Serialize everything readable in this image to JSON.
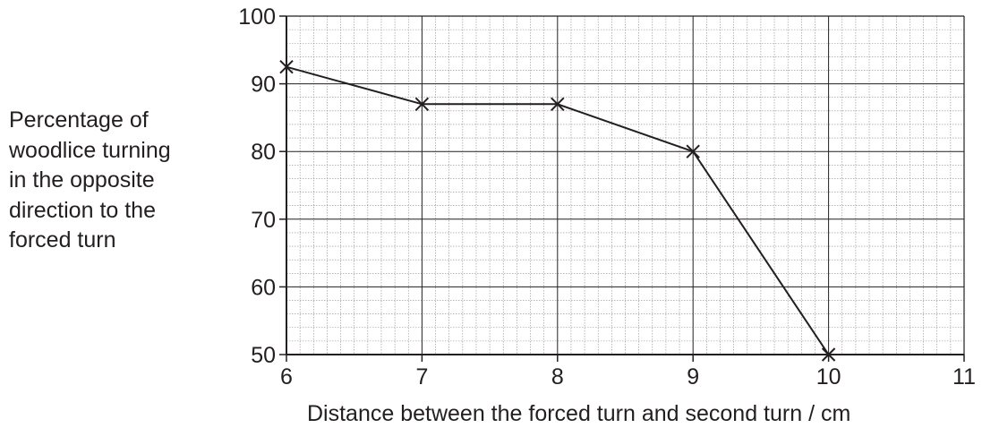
{
  "chart_data": {
    "type": "line",
    "title": "",
    "xlabel": "Distance between the forced turn and second turn / cm",
    "ylabel_lines": [
      "Percentage of",
      "woodlice turning",
      "in the opposite",
      "direction to the",
      "forced turn"
    ],
    "xlim": [
      6,
      11
    ],
    "ylim": [
      50,
      100
    ],
    "x_ticks": [
      "6",
      "7",
      "8",
      "9",
      "10",
      "11"
    ],
    "y_ticks": [
      "50",
      "60",
      "70",
      "80",
      "90",
      "100"
    ],
    "grid": true,
    "marker": "x",
    "series": [
      {
        "x": [
          6,
          7,
          8,
          9,
          10
        ],
        "y": [
          92.5,
          87,
          87,
          80,
          50
        ]
      }
    ],
    "colors": {
      "line": "#231f20",
      "grid": "#8c8c8c"
    }
  }
}
